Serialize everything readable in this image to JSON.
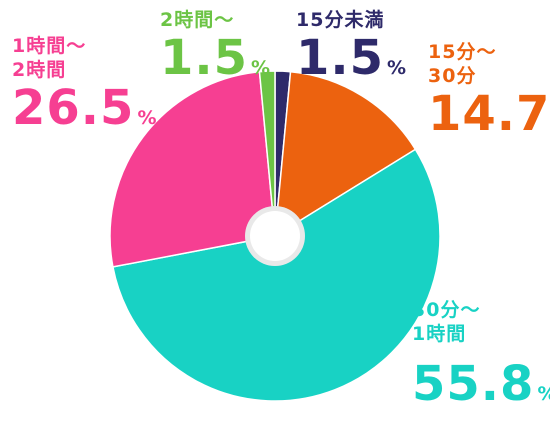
{
  "chart_data": {
    "type": "pie",
    "unit": "%",
    "hole_color": "#ffffff",
    "slices": [
      {
        "label": "15分未満",
        "lines": [
          "15分未満"
        ],
        "value": 1.5,
        "value_label": "1.5",
        "color": "#2e2a6a"
      },
      {
        "label": "15分〜30分",
        "lines": [
          "15分〜",
          "30分"
        ],
        "value": 14.7,
        "value_label": "14.7",
        "color": "#ec620f"
      },
      {
        "label": "30分〜1時間",
        "lines": [
          "30分〜",
          "1時間"
        ],
        "value": 55.8,
        "value_label": "55.8",
        "color": "#18d2c4"
      },
      {
        "label": "1時間〜2時間",
        "lines": [
          "1時間〜",
          "2時間"
        ],
        "value": 26.5,
        "value_label": "26.5",
        "color": "#f63f92"
      },
      {
        "label": "2時間〜",
        "lines": [
          "2時間〜"
        ],
        "value": 1.5,
        "value_label": "1.5",
        "color": "#6cc445"
      }
    ]
  }
}
